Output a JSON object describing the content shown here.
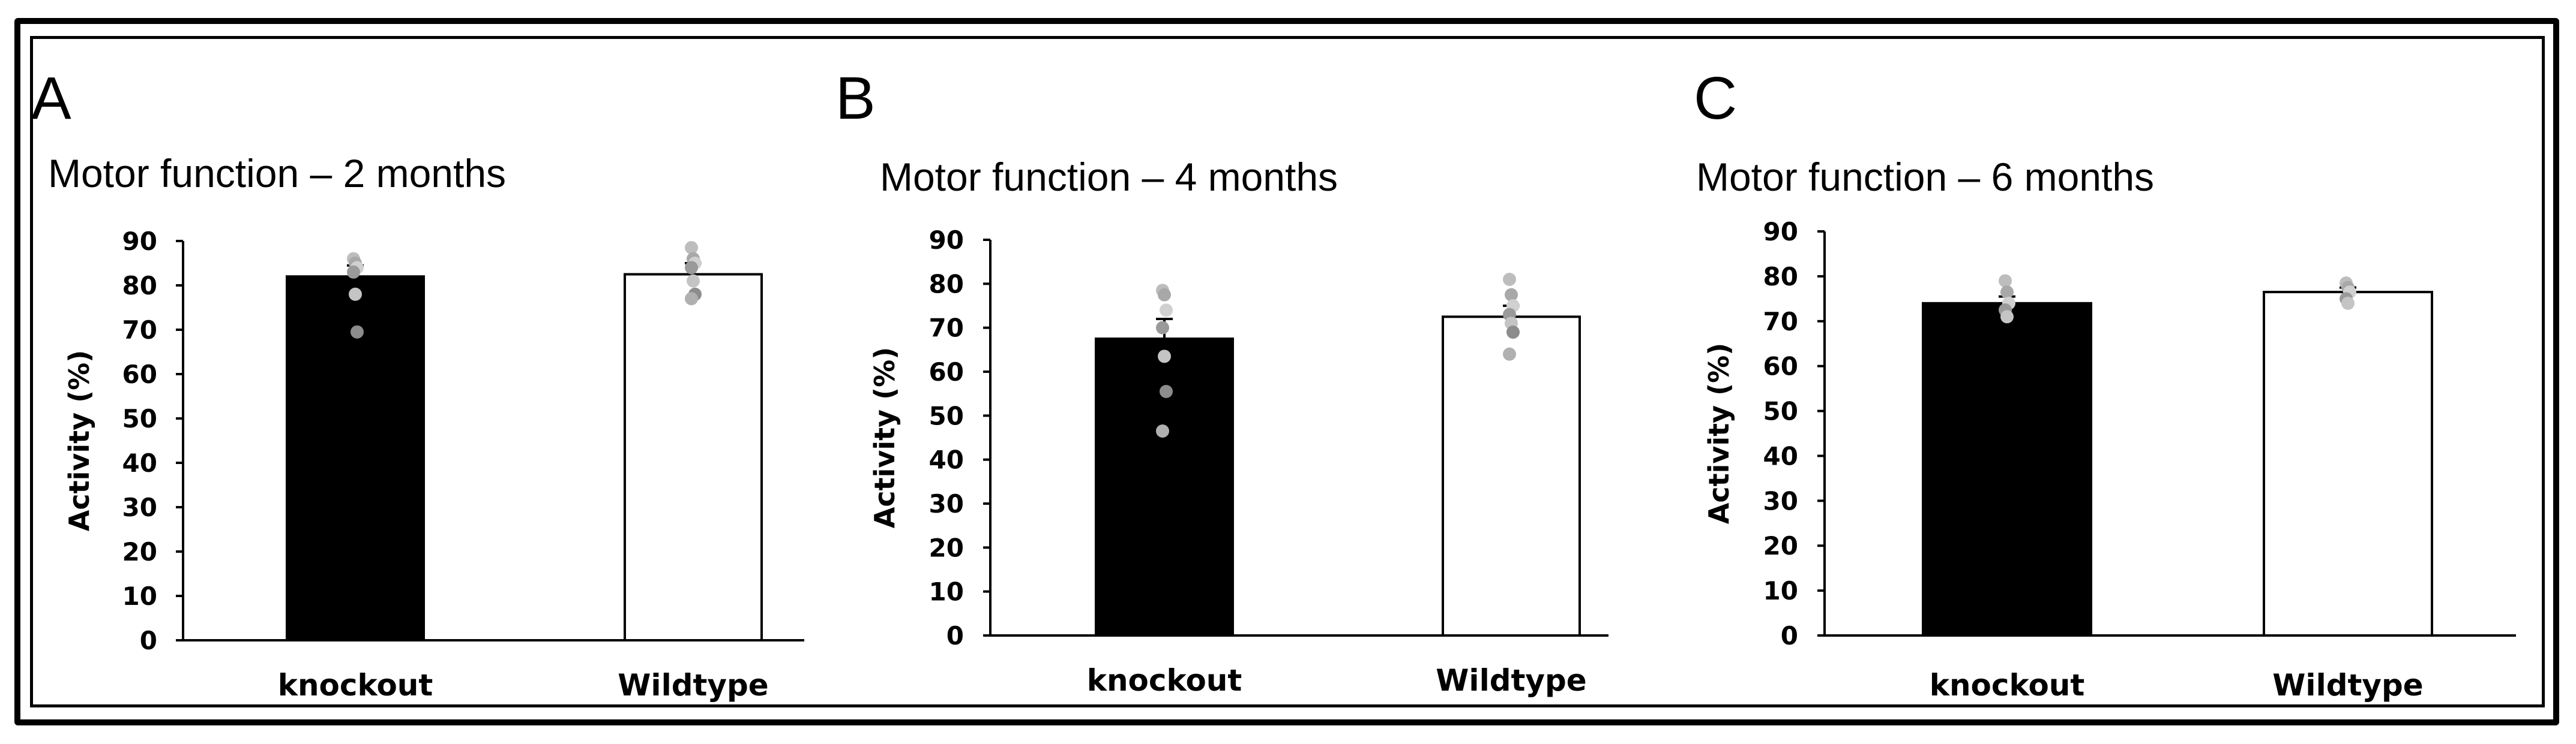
{
  "chart_data": [
    {
      "type": "bar",
      "panel": "A",
      "title": "Motor function – 2 months",
      "ylabel": "Activity (%)",
      "xlabel": "",
      "ylim": [
        0,
        90
      ],
      "yticks": [
        0,
        10,
        20,
        30,
        40,
        50,
        60,
        70,
        80,
        90
      ],
      "categories": [
        "knockout",
        "Wildtype"
      ],
      "values": [
        82,
        82.5
      ],
      "bar_colors": [
        "#000000",
        "#ffffff"
      ],
      "error_up": [
        2.5,
        2.5
      ],
      "points": [
        [
          86,
          85,
          84,
          83,
          78,
          69.5
        ],
        [
          88.5,
          86,
          85,
          84,
          81,
          78,
          77
        ]
      ]
    },
    {
      "type": "bar",
      "panel": "B",
      "title": "Motor function – 4 months",
      "ylabel": "Activity (%)",
      "xlabel": "",
      "ylim": [
        0,
        90
      ],
      "yticks": [
        0,
        10,
        20,
        30,
        40,
        50,
        60,
        70,
        80,
        90
      ],
      "categories": [
        "knockout",
        "Wildtype"
      ],
      "values": [
        67.5,
        72.5
      ],
      "bar_colors": [
        "#000000",
        "#ffffff"
      ],
      "error_up": [
        4.5,
        2.5
      ],
      "points": [
        [
          78.5,
          77.5,
          74,
          70,
          63.5,
          55.5,
          46.5
        ],
        [
          81,
          77.5,
          75,
          73,
          71,
          69,
          64
        ]
      ]
    },
    {
      "type": "bar",
      "panel": "C",
      "title": "Motor function – 6 months",
      "ylabel": "Activity (%)",
      "xlabel": "",
      "ylim": [
        0,
        90
      ],
      "yticks": [
        0,
        10,
        20,
        30,
        40,
        50,
        60,
        70,
        80,
        90
      ],
      "categories": [
        "knockout",
        "Wildtype"
      ],
      "values": [
        74,
        76.5
      ],
      "bar_colors": [
        "#000000",
        "#ffffff"
      ],
      "error_up": [
        1.5,
        1
      ],
      "points": [
        [
          79,
          76.5,
          74,
          72.5,
          71
        ],
        [
          78.5,
          77.5,
          76.5,
          75,
          74
        ]
      ]
    }
  ]
}
